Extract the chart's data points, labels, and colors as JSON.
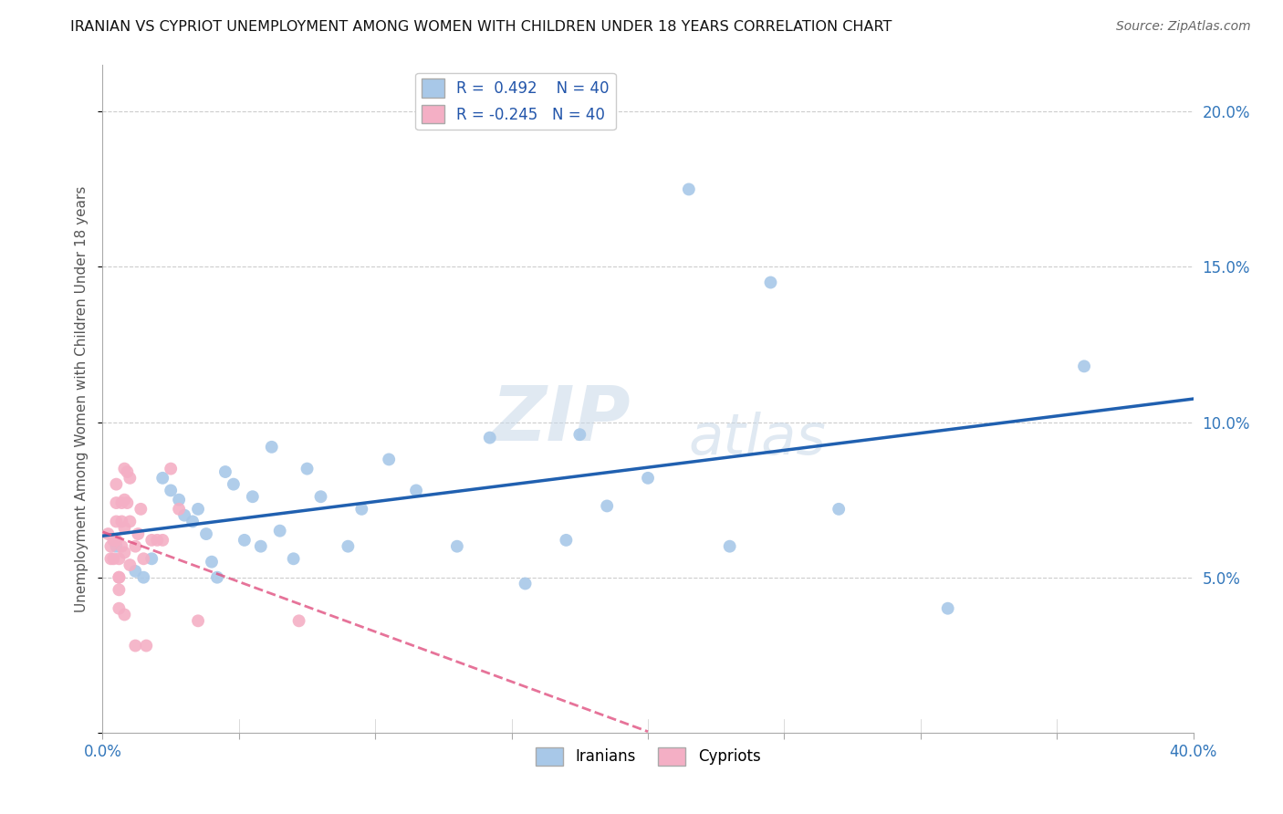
{
  "title": "IRANIAN VS CYPRIOT UNEMPLOYMENT AMONG WOMEN WITH CHILDREN UNDER 18 YEARS CORRELATION CHART",
  "source": "Source: ZipAtlas.com",
  "ylabel": "Unemployment Among Women with Children Under 18 years",
  "xlim": [
    0.0,
    0.4
  ],
  "ylim": [
    0.0,
    0.215
  ],
  "watermark": "ZIPatlas",
  "legend_iranian_R": "0.492",
  "legend_iranian_N": "40",
  "legend_cypriot_R": "-0.245",
  "legend_cypriot_N": "40",
  "iranian_color": "#a8c8e8",
  "cypriot_color": "#f4afc5",
  "iranian_line_color": "#2060b0",
  "cypriot_line_color": "#e05080",
  "background_color": "#ffffff",
  "grid_color": "#cccccc",
  "iranian_x": [
    0.005,
    0.012,
    0.015,
    0.018,
    0.022,
    0.025,
    0.028,
    0.03,
    0.033,
    0.035,
    0.038,
    0.04,
    0.042,
    0.045,
    0.048,
    0.052,
    0.055,
    0.058,
    0.062,
    0.065,
    0.07,
    0.075,
    0.08,
    0.09,
    0.095,
    0.105,
    0.115,
    0.13,
    0.142,
    0.155,
    0.17,
    0.175,
    0.185,
    0.2,
    0.215,
    0.23,
    0.245,
    0.27,
    0.31,
    0.36
  ],
  "iranian_y": [
    0.06,
    0.052,
    0.05,
    0.056,
    0.082,
    0.078,
    0.075,
    0.07,
    0.068,
    0.072,
    0.064,
    0.055,
    0.05,
    0.084,
    0.08,
    0.062,
    0.076,
    0.06,
    0.092,
    0.065,
    0.056,
    0.085,
    0.076,
    0.06,
    0.072,
    0.088,
    0.078,
    0.06,
    0.095,
    0.048,
    0.062,
    0.096,
    0.073,
    0.082,
    0.175,
    0.06,
    0.145,
    0.072,
    0.04,
    0.118
  ],
  "cypriot_x": [
    0.002,
    0.003,
    0.003,
    0.004,
    0.004,
    0.005,
    0.005,
    0.005,
    0.005,
    0.006,
    0.006,
    0.006,
    0.006,
    0.006,
    0.007,
    0.007,
    0.007,
    0.008,
    0.008,
    0.008,
    0.008,
    0.008,
    0.009,
    0.009,
    0.01,
    0.01,
    0.01,
    0.012,
    0.012,
    0.013,
    0.014,
    0.015,
    0.016,
    0.018,
    0.02,
    0.022,
    0.025,
    0.028,
    0.035,
    0.072
  ],
  "cypriot_y": [
    0.064,
    0.06,
    0.056,
    0.062,
    0.056,
    0.08,
    0.074,
    0.068,
    0.062,
    0.056,
    0.05,
    0.05,
    0.046,
    0.04,
    0.074,
    0.068,
    0.06,
    0.085,
    0.075,
    0.066,
    0.058,
    0.038,
    0.084,
    0.074,
    0.082,
    0.068,
    0.054,
    0.06,
    0.028,
    0.064,
    0.072,
    0.056,
    0.028,
    0.062,
    0.062,
    0.062,
    0.085,
    0.072,
    0.036,
    0.036
  ]
}
